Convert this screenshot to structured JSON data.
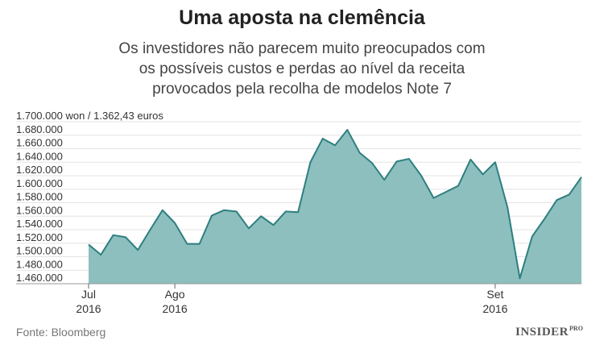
{
  "header": {
    "title": "Uma aposta na clemência",
    "subtitle_lines": [
      "Os investidores não parecem muito preocupados com",
      "os possíveis custos e perdas ao nível da receita",
      "provocados pela recolha de modelos Note 7"
    ]
  },
  "footer": {
    "source": "Fonte: Bloomberg",
    "brand": "INSIDER",
    "brand_suffix": "PRO"
  },
  "chart_data": {
    "type": "area",
    "title": "Uma aposta na clemência",
    "ylabel": "won / 1.362,43 euros",
    "ylim": [
      1460000,
      1700000
    ],
    "y_ticks": [
      {
        "value": 1700000,
        "label": "1.700.000"
      },
      {
        "value": 1680000,
        "label": "1.680.000"
      },
      {
        "value": 1660000,
        "label": "1.660.000"
      },
      {
        "value": 1640000,
        "label": "1.640.000"
      },
      {
        "value": 1620000,
        "label": "1.620.000"
      },
      {
        "value": 1600000,
        "label": "1.600.000"
      },
      {
        "value": 1580000,
        "label": "1.580.000"
      },
      {
        "value": 1560000,
        "label": "1.560.000"
      },
      {
        "value": 1540000,
        "label": "1.540.000"
      },
      {
        "value": 1520000,
        "label": "1.520.000"
      },
      {
        "value": 1500000,
        "label": "1.500.000"
      },
      {
        "value": 1480000,
        "label": "1.480.000"
      },
      {
        "value": 1460000,
        "label": "1.460.000"
      }
    ],
    "y_top_suffix": " won / 1.362,43 euros",
    "x_ticks": [
      {
        "index": 0,
        "month": "Jul",
        "year": "2016"
      },
      {
        "index": 7,
        "month": "Ago",
        "year": "2016"
      },
      {
        "index": 33,
        "month": "Set",
        "year": "2016"
      }
    ],
    "series": [
      {
        "color": "#8dbfbf",
        "line_color": "#2e7f7f",
        "values": [
          1518000,
          1503000,
          1532000,
          1529000,
          1510000,
          1540000,
          1569000,
          1550000,
          1519000,
          1519000,
          1561000,
          1569000,
          1567000,
          1542000,
          1560000,
          1547000,
          1567000,
          1566000,
          1640000,
          1675000,
          1665000,
          1688000,
          1654000,
          1639000,
          1614000,
          1641000,
          1645000,
          1620000,
          1587000,
          1596000,
          1605000,
          1644000,
          1622000,
          1640000,
          1573000,
          1468000,
          1530000,
          1556000,
          1584000,
          1592000,
          1618000
        ]
      }
    ],
    "grid": true
  }
}
